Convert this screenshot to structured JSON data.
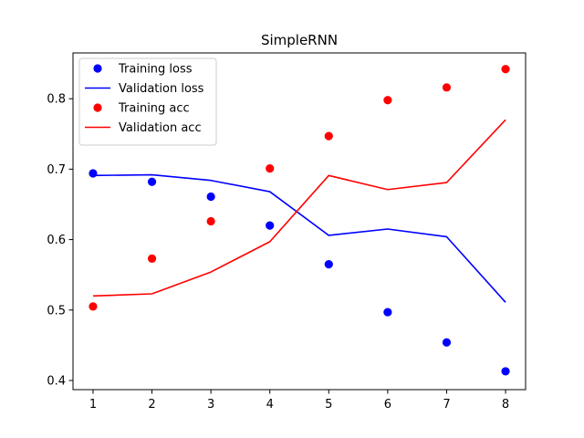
{
  "chart_data": {
    "type": "line",
    "title": "SimpleRNN",
    "xlabel": "",
    "ylabel": "",
    "xlim": [
      0.66,
      8.34
    ],
    "ylim": [
      0.387,
      0.865
    ],
    "xticks": [
      1,
      2,
      3,
      4,
      5,
      6,
      7,
      8
    ],
    "yticks": [
      0.4,
      0.5,
      0.6,
      0.7,
      0.8
    ],
    "ytick_labels": [
      "0.4",
      "0.5",
      "0.6",
      "0.7",
      "0.8"
    ],
    "grid": false,
    "legend_position": "top-left",
    "x": [
      1,
      2,
      3,
      4,
      5,
      6,
      7,
      8
    ],
    "series": [
      {
        "name": "Training loss",
        "style": "points",
        "color": "#0000ff",
        "values": [
          0.694,
          0.682,
          0.661,
          0.62,
          0.565,
          0.497,
          0.454,
          0.413
        ]
      },
      {
        "name": "Validation loss",
        "style": "line",
        "color": "#0000ff",
        "values": [
          0.691,
          0.692,
          0.684,
          0.668,
          0.606,
          0.615,
          0.604,
          0.511
        ]
      },
      {
        "name": "Training acc",
        "style": "points",
        "color": "#ff0000",
        "values": [
          0.505,
          0.573,
          0.626,
          0.701,
          0.747,
          0.798,
          0.816,
          0.842
        ]
      },
      {
        "name": "Validation acc",
        "style": "line",
        "color": "#ff0000",
        "values": [
          0.52,
          0.523,
          0.554,
          0.597,
          0.691,
          0.671,
          0.681,
          0.77
        ]
      }
    ]
  }
}
